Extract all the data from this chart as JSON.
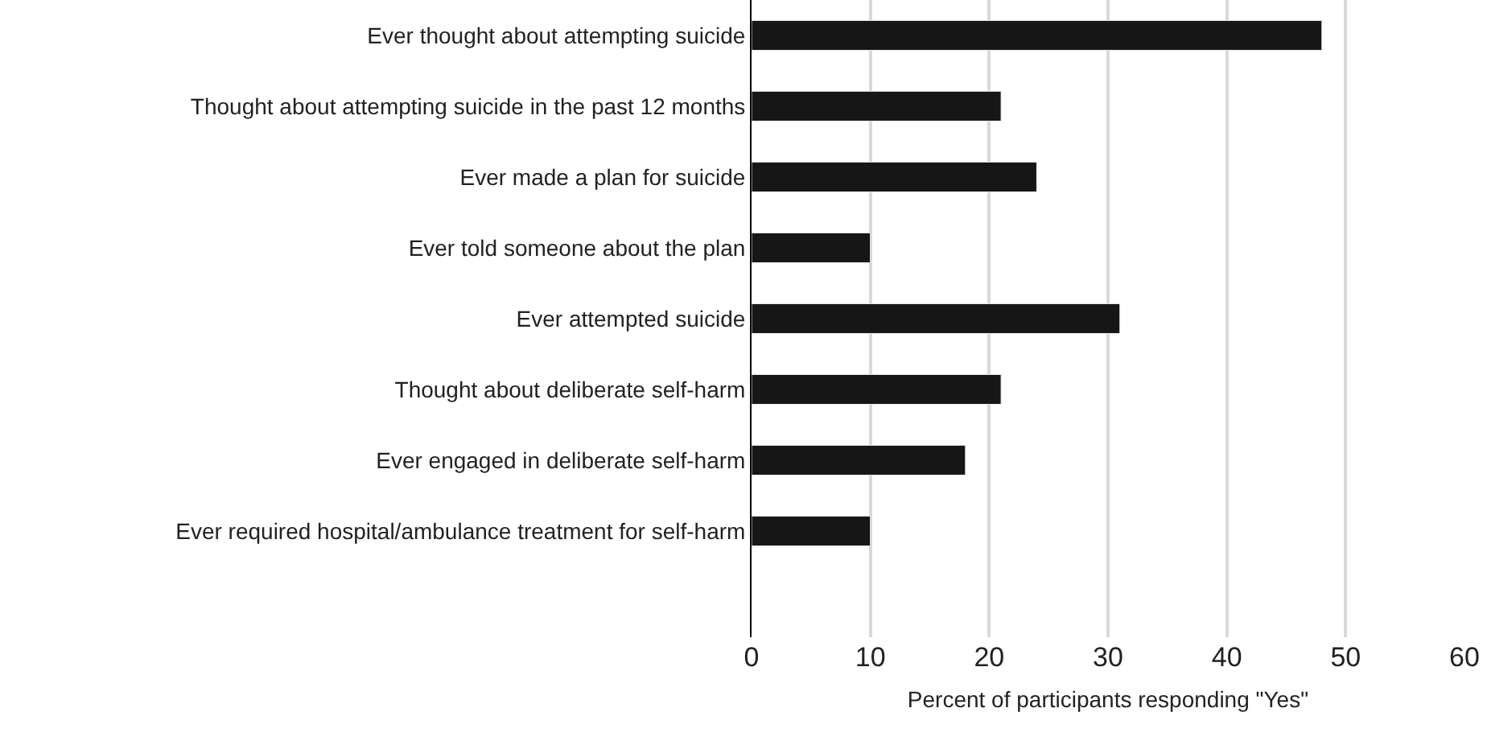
{
  "chart_data": {
    "type": "bar",
    "orientation": "horizontal",
    "xlabel": "Percent of participants responding \"Yes\"",
    "categories": [
      "Ever thought about attempting suicide",
      "Thought about attempting suicide in the past 12 months",
      "Ever made a plan for suicide",
      "Ever told someone about the plan",
      "Ever attempted suicide",
      "Thought about deliberate self-harm",
      "Ever engaged in deliberate self-harm",
      "Ever required hospital/ambulance treatment for self-harm",
      null
    ],
    "values": [
      48,
      21,
      24,
      10,
      31,
      21,
      18,
      10,
      null
    ],
    "color": "#161616",
    "xlim": [
      0,
      60
    ],
    "xticks": [
      0,
      10,
      20,
      30,
      40,
      50,
      60
    ],
    "grid": "x"
  }
}
